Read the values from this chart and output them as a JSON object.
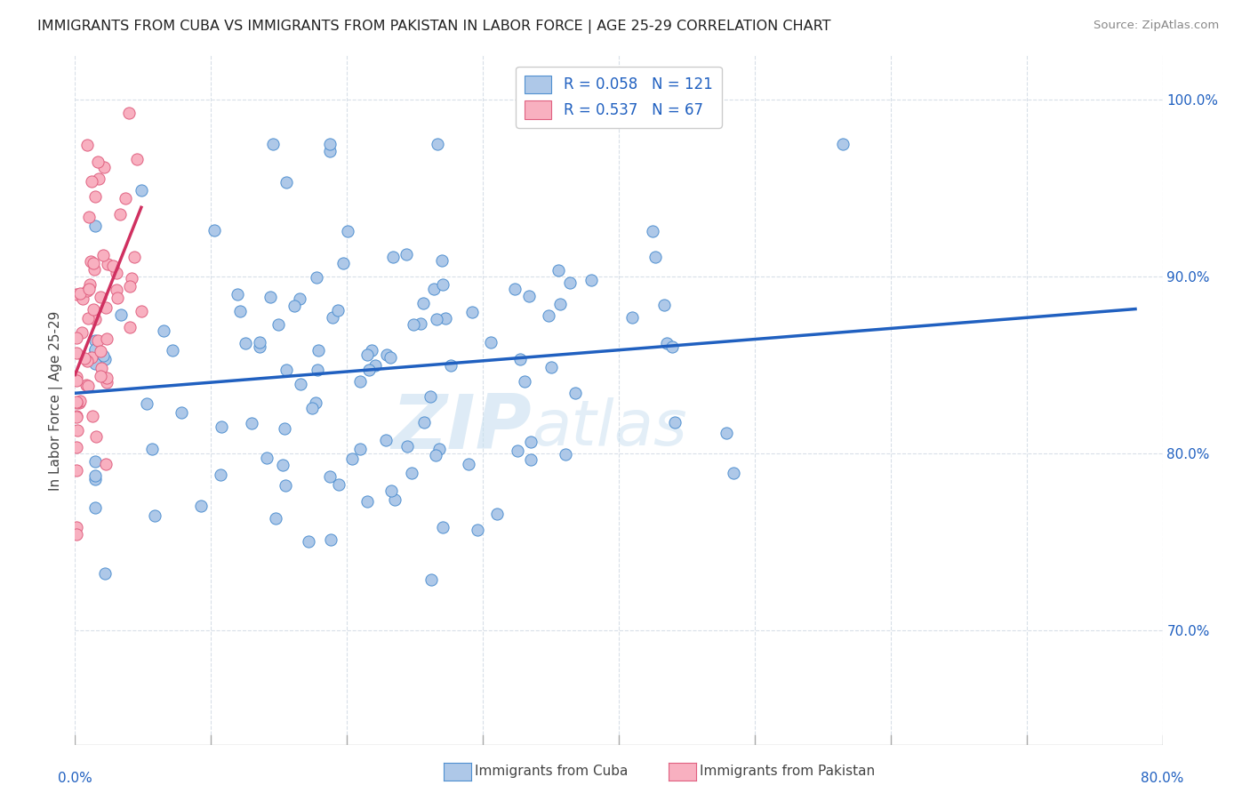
{
  "title": "IMMIGRANTS FROM CUBA VS IMMIGRANTS FROM PAKISTAN IN LABOR FORCE | AGE 25-29 CORRELATION CHART",
  "source": "Source: ZipAtlas.com",
  "ylabel": "In Labor Force | Age 25-29",
  "xlim": [
    0.0,
    0.8
  ],
  "ylim": [
    0.635,
    1.025
  ],
  "cuba_R": 0.058,
  "cuba_N": 121,
  "pakistan_R": 0.537,
  "pakistan_N": 67,
  "cuba_color": "#aec8e8",
  "cuba_edge_color": "#5090d0",
  "cuba_line_color": "#2060c0",
  "pakistan_color": "#f8b0c0",
  "pakistan_edge_color": "#e06080",
  "pakistan_line_color": "#d03060",
  "background_color": "#ffffff",
  "grid_color": "#d8dfe8",
  "watermark_text": "ZIPatlas",
  "watermark_color": "#c8dff0",
  "right_ytick_color": "#2060c0",
  "bottom_xlabel_color": "#2060c0"
}
